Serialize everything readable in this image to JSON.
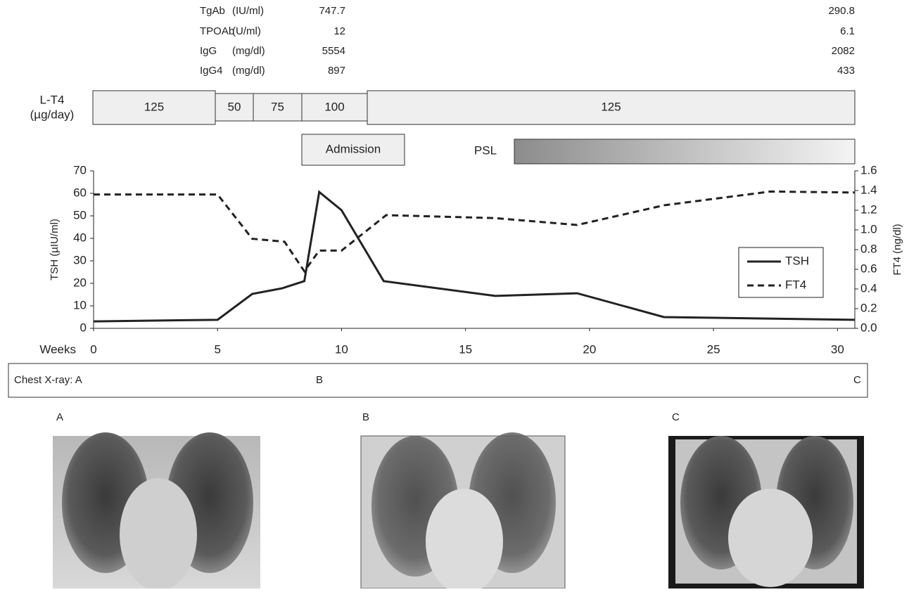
{
  "labs": {
    "rows": [
      {
        "name": "TgAb",
        "unit": "(IU/ml)",
        "initial": 747.7,
        "final": 290.8
      },
      {
        "name": "TPOAb",
        "unit": "(U/ml)",
        "initial": 12,
        "final": 6.1
      },
      {
        "name": "IgG",
        "unit": "(mg/dl)",
        "initial": 5554,
        "final": 2082
      },
      {
        "name": "IgG4",
        "unit": "(mg/dl)",
        "initial": 897,
        "final": 433
      }
    ]
  },
  "lt4": {
    "label": "L-T4",
    "unit": "(µg/day)",
    "doses": [
      125,
      50,
      75,
      100,
      125
    ]
  },
  "admission": "Admission",
  "psl": "PSL",
  "chart_data": {
    "type": "line",
    "xlabel": "Weeks",
    "ylabel": "TSH (µIU/ml)",
    "y2label": "FT4 (ng/dl)",
    "xlim": [
      0,
      30.7
    ],
    "xticks": [
      0,
      5,
      10,
      15,
      20,
      25,
      30
    ],
    "ylim": [
      0,
      70
    ],
    "yticks": [
      0,
      10,
      20,
      30,
      40,
      50,
      60,
      70
    ],
    "y2lim": [
      0,
      1.6
    ],
    "y2ticks": [
      {
        "value": 0,
        "label": "0.0"
      },
      0.2,
      0.4,
      0.6,
      0.8,
      {
        "value": 1,
        "label": "1.0"
      },
      1.2,
      1.4,
      1.6
    ],
    "legend": "right",
    "series": [
      {
        "name": "TSH",
        "color": "#222222",
        "dash": false,
        "x": [
          0,
          5,
          6.4,
          7.6,
          8.5,
          9.1,
          10.0,
          11.7,
          16.2,
          19.5,
          23.0,
          30.7
        ],
        "values": [
          3.1,
          3.8,
          15.3,
          17.8,
          21,
          60.6,
          52.5,
          21,
          14.4,
          15.6,
          5,
          3.8
        ]
      },
      {
        "name": "FT4",
        "color": "#222222",
        "dash": true,
        "axis": "y2",
        "x": [
          0,
          5,
          6.4,
          7.7,
          8.5,
          9.1,
          10.0,
          11.8,
          16.2,
          19.5,
          23.0,
          27.3,
          30.7
        ],
        "values": [
          1.36,
          1.36,
          0.91,
          0.88,
          0.58,
          0.79,
          0.79,
          1.15,
          1.12,
          1.05,
          1.25,
          1.39,
          1.38
        ]
      }
    ]
  },
  "chest_xray": {
    "label": "Chest X-ray: A",
    "b": "B",
    "c": "C"
  },
  "images": [
    "A",
    "B",
    "C"
  ]
}
